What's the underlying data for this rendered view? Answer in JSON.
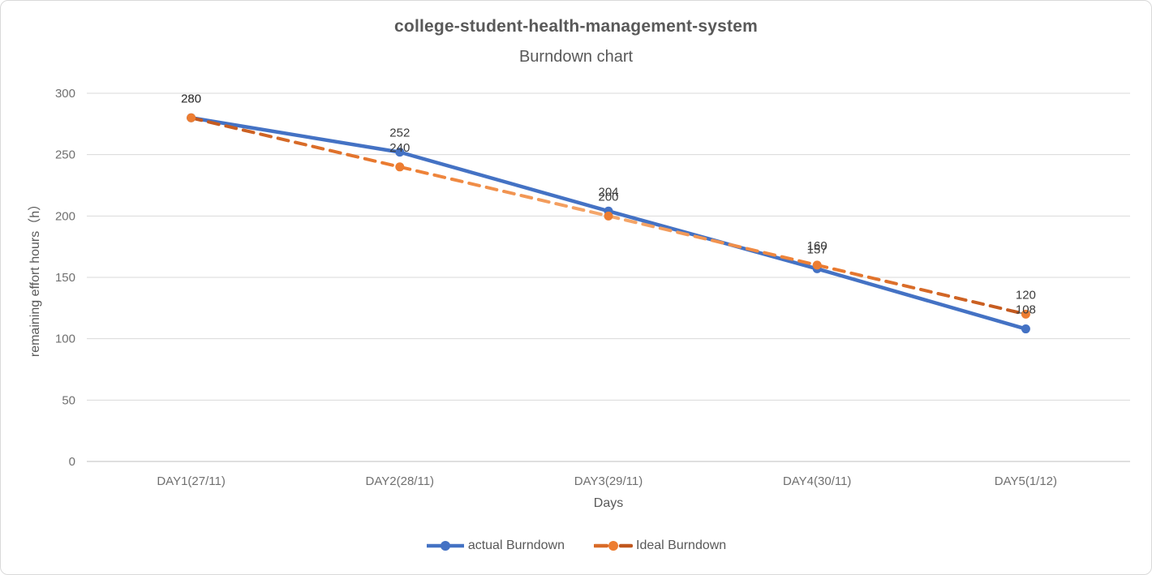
{
  "chart_data": {
    "type": "line",
    "title": "college-student-health-management-system",
    "subtitle": "Burndown chart",
    "xlabel": "Days",
    "ylabel": "remaining effort hours（h）",
    "categories": [
      "DAY1(27/11)",
      "DAY2(28/11)",
      "DAY3(29/11)",
      "DAY4(30/11)",
      "DAY5(1/12)"
    ],
    "series": [
      {
        "name": "actual Burndown",
        "values": [
          280,
          252,
          204,
          157,
          108
        ],
        "color": "#4472C4",
        "line_style": "solid",
        "marker": "circle"
      },
      {
        "name": "Ideal Burndown",
        "values": [
          280,
          240,
          200,
          160,
          120
        ],
        "color": "#ED7D31",
        "line_style": "dashed",
        "marker": "circle",
        "stroke_gradient": [
          "#C0571E",
          "#ED7D31",
          "#F5A96E",
          "#ED7D31",
          "#C0571E"
        ]
      }
    ],
    "ylim": [
      0,
      300
    ],
    "yticks": [
      0,
      50,
      100,
      150,
      200,
      250,
      300
    ],
    "grid": true,
    "legend_position": "bottom",
    "data_labels": true,
    "colors": {
      "gridline": "#D9D9D9",
      "axis_line": "#BFBFBF",
      "tick_label": "#707070",
      "data_label": "#3B3B3B",
      "title": "#595959"
    }
  }
}
